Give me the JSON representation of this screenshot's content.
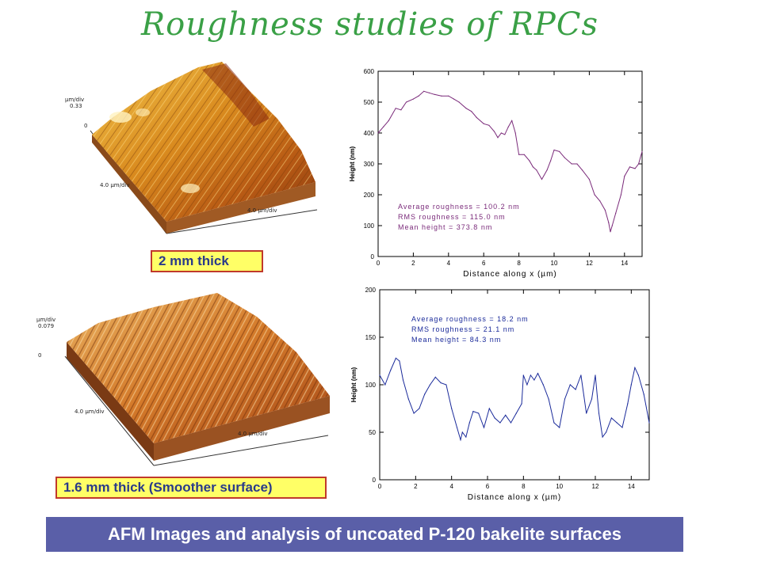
{
  "title": "Roughness studies of RPCs",
  "footer": "AFM Images and analysis of uncoated P-120 bakelite surfaces",
  "afm_top": {
    "caption": "2 mm thick",
    "z_unit": "µm/div",
    "z_value": "0.33",
    "zero": "0",
    "x_label_left": "4.0 µm/div",
    "x_label_right": "4.0 µm/div"
  },
  "afm_bottom": {
    "caption": "1.6 mm thick (Smoother surface)",
    "z_unit": "µm/div",
    "z_value": "0.079",
    "zero": "0",
    "x_label_left": "4.0 µm/div",
    "x_label_right": "4.0 µm/div"
  },
  "colors": {
    "title": "#3aa046",
    "plot_top_line": "#7a2a7a",
    "plot_bottom_line": "#1a2a9a",
    "badge_bg": "#ffff66",
    "badge_border": "#c0392b",
    "footer_bg": "#5a5fa8"
  },
  "chart_data": [
    {
      "type": "line",
      "xlabel": "Distance along x (µm)",
      "ylabel": "Height (nm)",
      "xlim": [
        0,
        15
      ],
      "ylim": [
        0,
        600
      ],
      "xticks": [
        "0",
        "2",
        "4",
        "6",
        "8",
        "10",
        "12",
        "14"
      ],
      "yticks": [
        "0",
        "100",
        "200",
        "300",
        "400",
        "500",
        "600"
      ],
      "annotations": [
        "Average roughness = 100.2 nm",
        "RMS roughness = 115.0 nm",
        "Mean height = 373.8 nm"
      ],
      "x": [
        0,
        0.3,
        0.6,
        1,
        1.3,
        1.6,
        2,
        2.3,
        2.6,
        2.9,
        3.2,
        3.6,
        4,
        4.3,
        4.6,
        5,
        5.3,
        5.6,
        6,
        6.3,
        6.6,
        6.8,
        7,
        7.2,
        7.4,
        7.6,
        7.8,
        8,
        8.3,
        8.6,
        8.8,
        9,
        9.3,
        9.6,
        9.8,
        10,
        10.3,
        10.6,
        11,
        11.3,
        11.6,
        12,
        12.3,
        12.6,
        12.9,
        13.1,
        13.2,
        13.3,
        13.5,
        13.8,
        14,
        14.3,
        14.6,
        14.8,
        15
      ],
      "series": [
        {
          "values": [
            400,
            420,
            440,
            480,
            475,
            500,
            510,
            520,
            535,
            530,
            525,
            520,
            520,
            510,
            500,
            480,
            470,
            450,
            430,
            425,
            405,
            385,
            400,
            395,
            420,
            440,
            400,
            330,
            330,
            310,
            290,
            280,
            250,
            280,
            310,
            345,
            340,
            320,
            300,
            300,
            280,
            250,
            200,
            180,
            150,
            110,
            80,
            100,
            140,
            200,
            260,
            290,
            285,
            300,
            340
          ]
        }
      ]
    },
    {
      "type": "line",
      "xlabel": "Distance along x (µm)",
      "ylabel": "Height (nm)",
      "xlim": [
        0,
        15
      ],
      "ylim": [
        0,
        200
      ],
      "xticks": [
        "0",
        "2",
        "4",
        "6",
        "8",
        "10",
        "12",
        "14"
      ],
      "yticks": [
        "0",
        "50",
        "100",
        "150",
        "200"
      ],
      "annotations": [
        "Average roughness = 18.2 nm",
        "RMS roughness = 21.1 nm",
        "Mean height = 84.3 nm"
      ],
      "x": [
        0,
        0.3,
        0.6,
        0.9,
        1.1,
        1.3,
        1.6,
        1.9,
        2.2,
        2.5,
        2.8,
        3.1,
        3.4,
        3.7,
        4.0,
        4.3,
        4.5,
        4.6,
        4.8,
        5.0,
        5.2,
        5.5,
        5.8,
        6.1,
        6.4,
        6.7,
        7.0,
        7.3,
        7.6,
        7.9,
        8.0,
        8.2,
        8.4,
        8.6,
        8.8,
        9.1,
        9.4,
        9.7,
        10.0,
        10.3,
        10.6,
        10.9,
        11.2,
        11.5,
        11.8,
        12.0,
        12.2,
        12.4,
        12.6,
        12.9,
        13.2,
        13.5,
        13.8,
        14.0,
        14.2,
        14.4,
        14.7,
        15.0
      ],
      "series": [
        {
          "values": [
            110,
            100,
            115,
            128,
            125,
            105,
            85,
            70,
            75,
            90,
            100,
            108,
            102,
            100,
            75,
            55,
            42,
            50,
            45,
            60,
            72,
            70,
            55,
            75,
            65,
            60,
            68,
            60,
            70,
            80,
            110,
            100,
            110,
            105,
            112,
            100,
            85,
            60,
            55,
            85,
            100,
            95,
            110,
            70,
            85,
            110,
            70,
            45,
            50,
            65,
            60,
            55,
            80,
            100,
            118,
            110,
            90,
            60
          ]
        }
      ]
    }
  ]
}
